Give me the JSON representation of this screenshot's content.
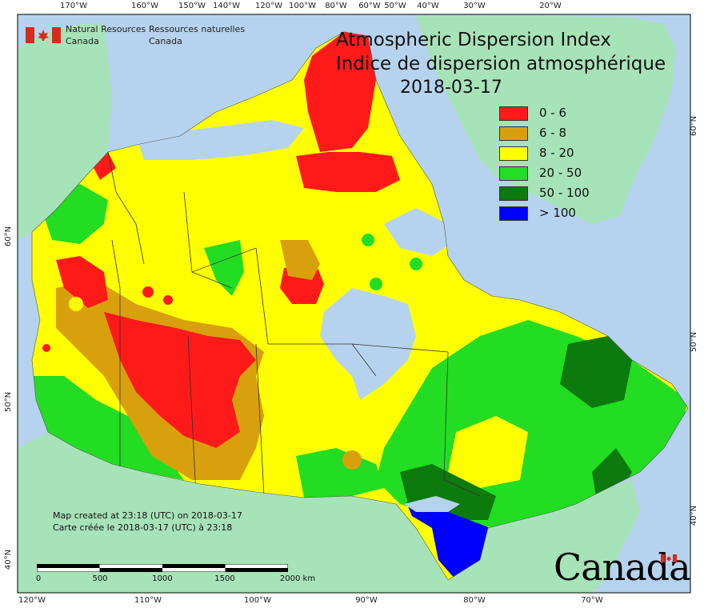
{
  "agency": {
    "name_en_line1": "Natural Resources",
    "name_en_line2": "Canada",
    "name_fr_line1": "Ressources naturelles",
    "name_fr_line2": "Canada"
  },
  "title": {
    "en": "Atmospheric Dispersion Index",
    "fr": "Indice de dispersion atmosphérique",
    "date": "2018-03-17"
  },
  "legend": [
    {
      "label": "0 - 6",
      "color": "#ff1a1a"
    },
    {
      "label": "6 - 8",
      "color": "#d9a00d"
    },
    {
      "label": "8 - 20",
      "color": "#ffff00"
    },
    {
      "label": "20 - 50",
      "color": "#22dd22"
    },
    {
      "label": "50 - 100",
      "color": "#0d7a0d"
    },
    {
      "label": "> 100",
      "color": "#0000ff"
    }
  ],
  "colors": {
    "ocean": "#b5d3ee",
    "foreign_land": "#a7e3b8",
    "border": "#333333"
  },
  "graticule": {
    "top": [
      "170°W",
      "160°W",
      "150°W",
      "140°W",
      "120°W",
      "100°W",
      "80°W",
      "60°W",
      "50°W",
      "40°W",
      "30°W",
      "20°W"
    ],
    "bottom": [
      "120°W",
      "110°W",
      "100°W",
      "90°W",
      "80°W",
      "70°W"
    ],
    "left": [
      "60°N",
      "50°N",
      "40°N"
    ],
    "right": [
      "60°N",
      "50°N",
      "40°N"
    ]
  },
  "notes": {
    "created_en": "Map created at 23:18 (UTC) on 2018-03-17",
    "created_fr": "Carte créée le 2018-03-17 (UTC) à 23:18"
  },
  "scale": {
    "labels": [
      "0",
      "500",
      "1000",
      "1500",
      "2000  km"
    ]
  },
  "wordmark": "Canada"
}
